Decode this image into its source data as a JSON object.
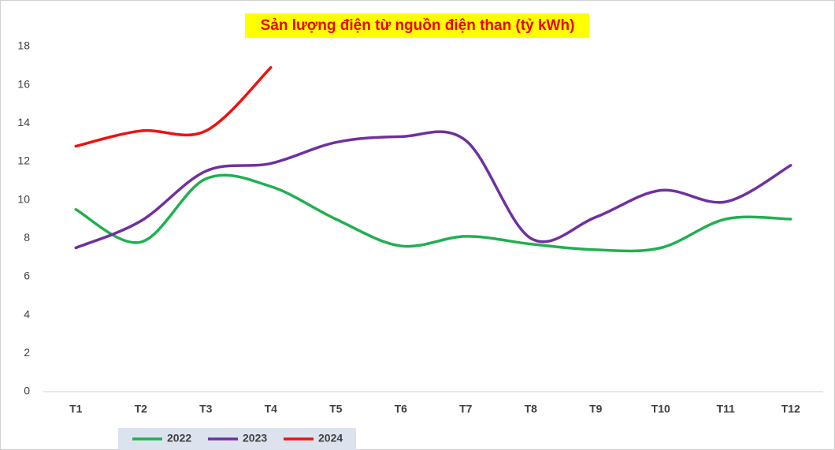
{
  "chart_data": {
    "type": "line",
    "title": "Sản lượng điện từ nguồn điện than (tỷ kWh)",
    "categories": [
      "T1",
      "T2",
      "T3",
      "T4",
      "T5",
      "T6",
      "T7",
      "T8",
      "T9",
      "T10",
      "T11",
      "T12"
    ],
    "series": [
      {
        "name": "2022",
        "color": "#1fb050",
        "values": [
          9.5,
          7.8,
          11.1,
          10.7,
          9.0,
          7.6,
          8.1,
          7.7,
          7.4,
          7.5,
          9.0,
          9.0
        ]
      },
      {
        "name": "2023",
        "color": "#7030a0",
        "values": [
          7.5,
          8.9,
          11.5,
          11.9,
          13.0,
          13.3,
          13.1,
          8.0,
          9.1,
          10.5,
          9.9,
          11.8
        ]
      },
      {
        "name": "2024",
        "color": "#ee1111",
        "values": [
          12.8,
          13.6,
          13.6,
          16.9,
          null,
          null,
          null,
          null,
          null,
          null,
          null,
          null
        ]
      }
    ],
    "ylim": [
      0,
      18
    ],
    "yticks": [
      0,
      2,
      4,
      6,
      8,
      10,
      12,
      14,
      16,
      18
    ],
    "grid": false,
    "smooth": true,
    "legend": "bottom"
  }
}
